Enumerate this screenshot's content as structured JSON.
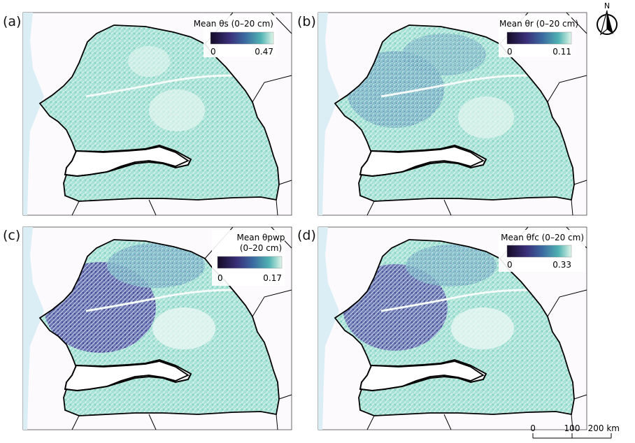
{
  "panels": [
    {
      "label": "(a)",
      "legend_title": "Mean θs (0–20 cm)",
      "legend_title_line2": "",
      "min": "0",
      "max": "0.47",
      "ramp": [
        "#140a26",
        "#3a2f78",
        "#3b6aa0",
        "#4fb2b2",
        "#dff5e8"
      ]
    },
    {
      "label": "(b)",
      "legend_title": "Mean θr (0–20 cm)",
      "legend_title_line2": "",
      "min": "0",
      "max": "0.11",
      "ramp": [
        "#140a26",
        "#3a2f78",
        "#3b6aa0",
        "#4fb2b2",
        "#dff5e8"
      ]
    },
    {
      "label": "(c)",
      "legend_title": "Mean θpwp",
      "legend_title_line2": "(0–20 cm)",
      "min": "0",
      "max": "0.17",
      "ramp": [
        "#140a26",
        "#3a2f78",
        "#3b6aa0",
        "#4fb2b2",
        "#dff5e8"
      ]
    },
    {
      "label": "(d)",
      "legend_title": "Mean θfc (0–20 cm)",
      "legend_title_line2": "",
      "min": "0",
      "max": "0.33",
      "ramp": [
        "#140a26",
        "#3a2f78",
        "#3b6aa0",
        "#4fb2b2",
        "#dff5e8"
      ]
    }
  ],
  "north_arrow": {
    "letter": "N"
  },
  "scale_bar": {
    "labels": [
      "0",
      "100",
      "200 km"
    ]
  },
  "colors": {
    "ocean": "#dbeef6",
    "land_bg": "#fdfafd",
    "fill_low": "#7fd2c2",
    "fill_high": "#3d3a8c",
    "border": "#000000"
  }
}
